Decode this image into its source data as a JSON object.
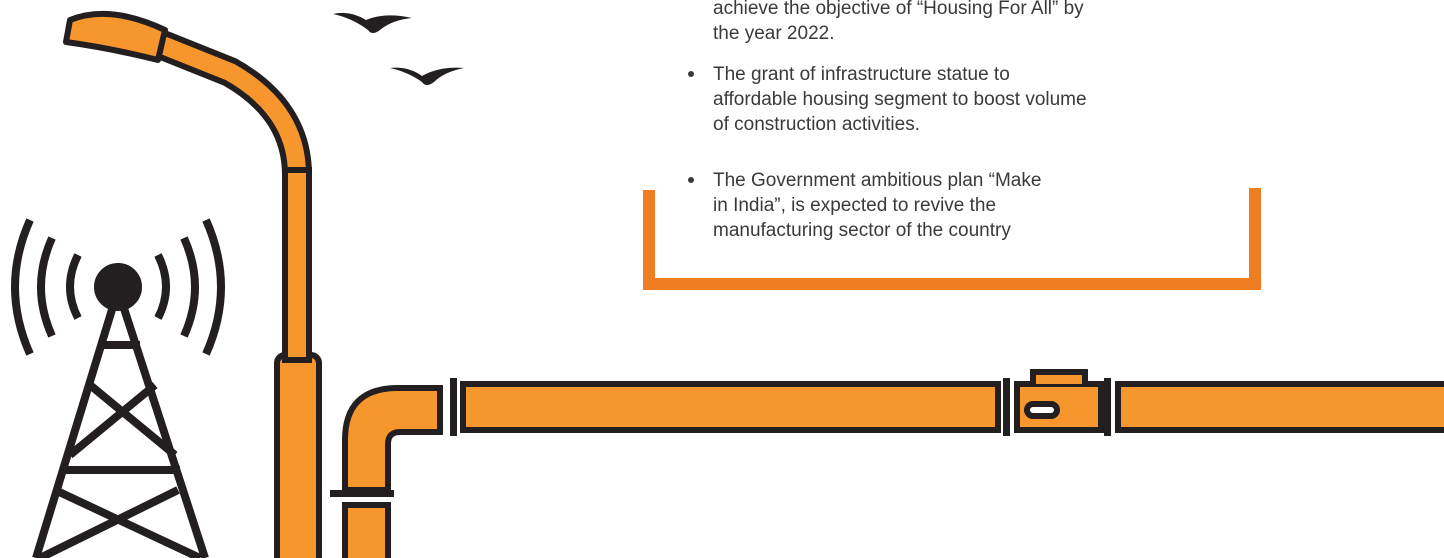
{
  "bullets": [
    {
      "lines": [
        "achieve the objective of “Housing For All” by",
        "the year 2022."
      ]
    },
    {
      "lines": [
        "The grant of infrastructure statue to",
        "affordable housing segment to boost volume",
        "of construction activities."
      ]
    },
    {
      "lines": [
        "The Government ambitious plan “Make",
        "in India”, is expected to revive the",
        "manufacturing sector of the country"
      ]
    }
  ]
}
